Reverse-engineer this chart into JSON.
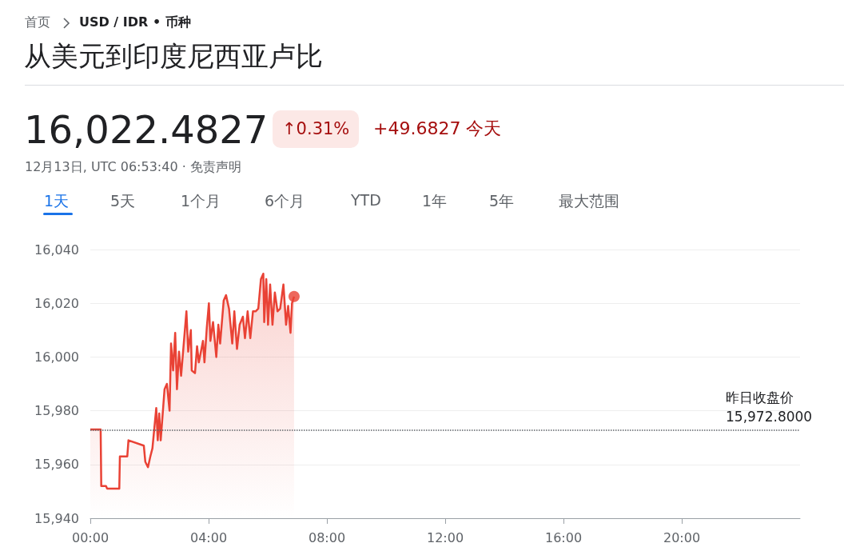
{
  "chart_data": {
    "type": "area",
    "title": "从美元到印度尼西亚卢比",
    "subtitle": "16,022.4827",
    "annotations": [
      "首页",
      "USD / IDR • 币种",
      "↑0.31%",
      "+49.6827 今天",
      "12月13日, UTC 06:53:40 · 免责声明",
      "1天",
      "5天",
      "1个月",
      "6个月",
      "YTD",
      "1年",
      "5年",
      "最大范围"
    ],
    "xlim": [
      0,
      24
    ],
    "xticks": [
      {
        "value": 0,
        "label": "00:00"
      },
      {
        "value": 4,
        "label": "04:00"
      },
      {
        "value": 8,
        "label": "08:00"
      },
      {
        "value": 12,
        "label": "12:00"
      },
      {
        "value": 16,
        "label": "16:00"
      },
      {
        "value": 20,
        "label": "20:00"
      }
    ],
    "ylim": [
      15940,
      16040
    ],
    "yticks": [
      {
        "value": 15940,
        "label": "15,940"
      },
      {
        "value": 15960,
        "label": "15,960"
      },
      {
        "value": 15980,
        "label": "15,980"
      },
      {
        "value": 16000,
        "label": "16,000"
      },
      {
        "value": 16020,
        "label": "16,020"
      },
      {
        "value": 16040,
        "label": "16,040"
      }
    ],
    "grid": "y",
    "ref_lines": [
      {
        "axis": "y",
        "value": 15972.8,
        "label": "昨日收盘价 15,972.8000",
        "color": "#5f6368",
        "line_style": "dotted"
      }
    ],
    "series": [
      {
        "color": "#e94235",
        "x": [
          0,
          0.35,
          0.37,
          0.53,
          0.57,
          0.98,
          1.0,
          1.25,
          1.29,
          1.81,
          1.86,
          1.95,
          2.03,
          2.1,
          2.23,
          2.28,
          2.33,
          2.38,
          2.51,
          2.59,
          2.68,
          2.73,
          2.8,
          2.87,
          2.93,
          3.0,
          3.07,
          3.16,
          3.25,
          3.31,
          3.4,
          3.43,
          3.54,
          3.61,
          3.67,
          3.81,
          3.86,
          3.94,
          4.01,
          4.06,
          4.15,
          4.26,
          4.33,
          4.39,
          4.51,
          4.59,
          4.69,
          4.8,
          4.87,
          4.96,
          5.05,
          5.16,
          5.23,
          5.32,
          5.41,
          5.5,
          5.59,
          5.68,
          5.77,
          5.85,
          5.88,
          5.95,
          6.01,
          6.08,
          6.16,
          6.24,
          6.33,
          6.42,
          6.53,
          6.62,
          6.69,
          6.77,
          6.82,
          6.89
        ],
        "values": [
          15973,
          15973,
          15952,
          15952,
          15951,
          15951,
          15963,
          15963,
          15969,
          15967,
          15961,
          15959,
          15963,
          15966,
          15981,
          15969,
          15979,
          15969,
          15988,
          15990,
          15980,
          16005,
          15995,
          16009,
          15988,
          16002,
          15993,
          16005,
          16017,
          16002,
          16010,
          15995,
          15994,
          16004,
          15998,
          16006,
          15998,
          16011,
          16020,
          16006,
          16013,
          16000,
          16012,
          16005,
          16021,
          16023,
          16018,
          16005,
          16017,
          16003,
          16012,
          16015,
          16007,
          16017,
          16007,
          16017,
          16017,
          16018,
          16029,
          16031,
          16013,
          16029,
          16012,
          16027,
          16012,
          16024,
          16017,
          16018,
          16027,
          16012,
          16019,
          16009,
          16020,
          16022.5
        ]
      },
      {
        "type": "scatter",
        "color": "#e94235",
        "marker": "circle",
        "x": [
          6.89
        ],
        "values": [
          16022.5
        ]
      }
    ]
  }
}
